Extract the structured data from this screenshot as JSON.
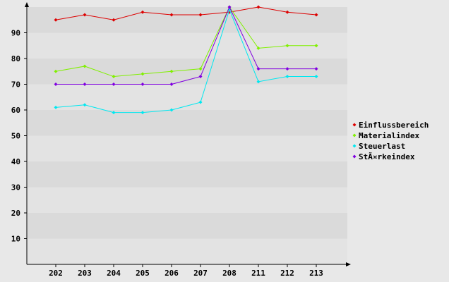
{
  "chart_data": {
    "type": "line",
    "categories": [
      "202",
      "203",
      "204",
      "205",
      "206",
      "207",
      "208",
      "211",
      "212",
      "213"
    ],
    "series": [
      {
        "name": "Einflussbereich",
        "color": "#dd0000",
        "values": [
          95,
          97,
          95,
          98,
          97,
          97,
          98,
          100,
          98,
          97
        ]
      },
      {
        "name": "Materialindex",
        "color": "#80f000",
        "values": [
          75,
          77,
          73,
          74,
          75,
          76,
          100,
          84,
          85,
          85
        ]
      },
      {
        "name": "Steuerlast",
        "color": "#00e8f0",
        "values": [
          61,
          62,
          59,
          59,
          60,
          63,
          99,
          71,
          73,
          73
        ]
      },
      {
        "name": "StÃ¤rkeindex",
        "color": "#8000e0",
        "values": [
          70,
          70,
          70,
          70,
          70,
          73,
          100,
          76,
          76,
          76
        ]
      }
    ],
    "yticks": [
      10,
      20,
      30,
      40,
      50,
      60,
      70,
      80,
      90
    ],
    "ylim": [
      0,
      100
    ],
    "grid": true,
    "legend": "right",
    "title": "",
    "xlabel": "",
    "ylabel": ""
  }
}
